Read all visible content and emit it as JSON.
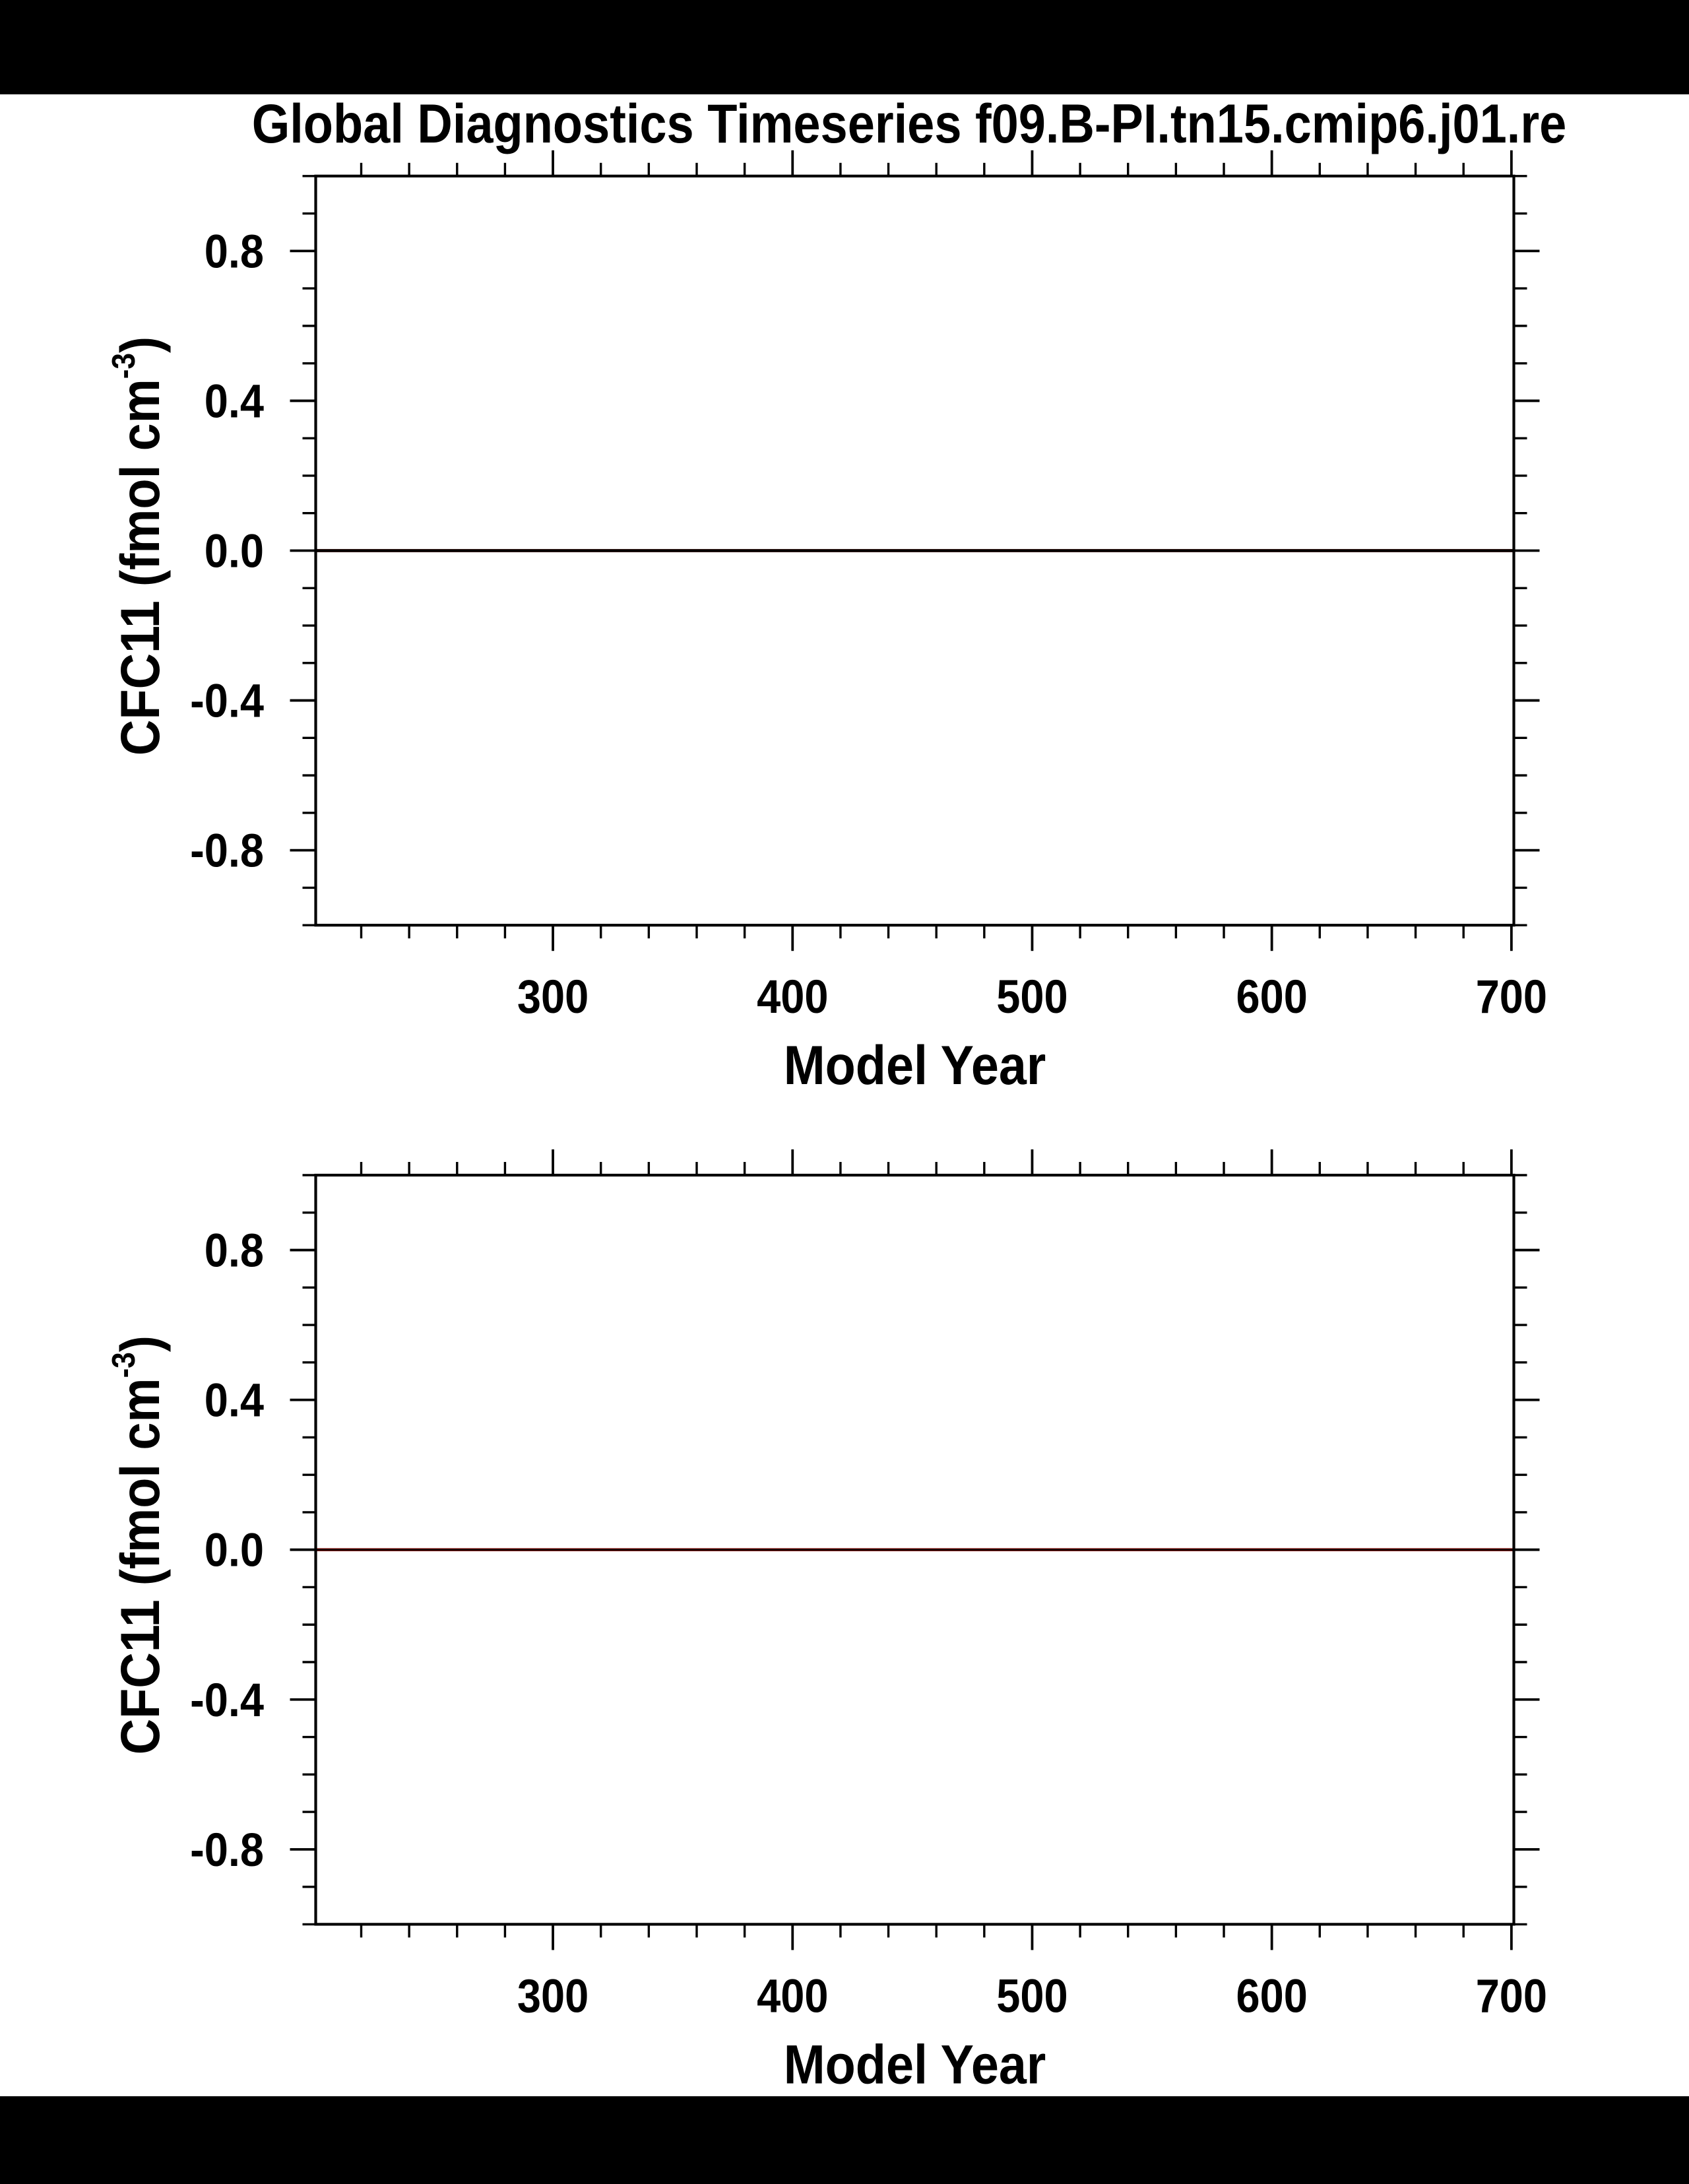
{
  "figure": {
    "background_color": "#ffffff",
    "band_color": "#000000",
    "ink_color": "#000000",
    "top_band": true,
    "bottom_band": true
  },
  "chart_data": [
    {
      "type": "line",
      "title": "Global Diagnostics Timeseries f09.B-PI.tn15.cmip6.j01.re",
      "xlabel": "Model Year",
      "ylabel": "CFC11 (fmol cm-3)",
      "ylabel_parts": [
        {
          "text": "CFC11 (fmol cm",
          "sup": false
        },
        {
          "text": "-3",
          "sup": true
        },
        {
          "text": ")",
          "sup": false
        }
      ],
      "xlim": [
        201,
        701
      ],
      "ylim": [
        -1.0,
        1.0
      ],
      "x_major_ticks": [
        300,
        400,
        500,
        600,
        700
      ],
      "x_tick_labels": [
        "300",
        "400",
        "500",
        "600",
        "700"
      ],
      "x_minor_step": 20,
      "y_major_ticks": [
        0.8,
        0.4,
        0.0,
        -0.4,
        -0.8
      ],
      "y_tick_labels": [
        "0.8",
        "0.4",
        "0.0",
        "-0.4",
        "-0.8"
      ],
      "y_minor_step": 0.1,
      "grid": false,
      "legend": null,
      "series": [
        {
          "x": [
            201,
            701
          ],
          "y": [
            0,
            0
          ],
          "color": "#7a1410",
          "width": 4.8
        },
        {
          "x": [
            201,
            701
          ],
          "y": [
            0,
            0
          ],
          "color": "#000000",
          "width": 4.2
        }
      ]
    },
    {
      "type": "line",
      "title": "",
      "xlabel": "Model Year",
      "ylabel": "CFC11 (fmol cm-3)",
      "ylabel_parts": [
        {
          "text": "CFC11 (fmol cm",
          "sup": false
        },
        {
          "text": "-3",
          "sup": true
        },
        {
          "text": ")",
          "sup": false
        }
      ],
      "xlim": [
        201,
        701
      ],
      "ylim": [
        -1.0,
        1.0
      ],
      "x_major_ticks": [
        300,
        400,
        500,
        600,
        700
      ],
      "x_tick_labels": [
        "300",
        "400",
        "500",
        "600",
        "700"
      ],
      "x_minor_step": 20,
      "y_major_ticks": [
        0.8,
        0.4,
        0.0,
        -0.4,
        -0.8
      ],
      "y_tick_labels": [
        "0.8",
        "0.4",
        "0.0",
        "-0.4",
        "-0.8"
      ],
      "y_minor_step": 0.1,
      "grid": false,
      "legend": null,
      "series": [
        {
          "x": [
            201,
            701
          ],
          "y": [
            0,
            0
          ],
          "color": "#7a1410",
          "width": 4.6
        },
        {
          "x": [
            201,
            701
          ],
          "y": [
            0,
            0
          ],
          "color": "#000000",
          "width": 2.0
        }
      ]
    }
  ]
}
